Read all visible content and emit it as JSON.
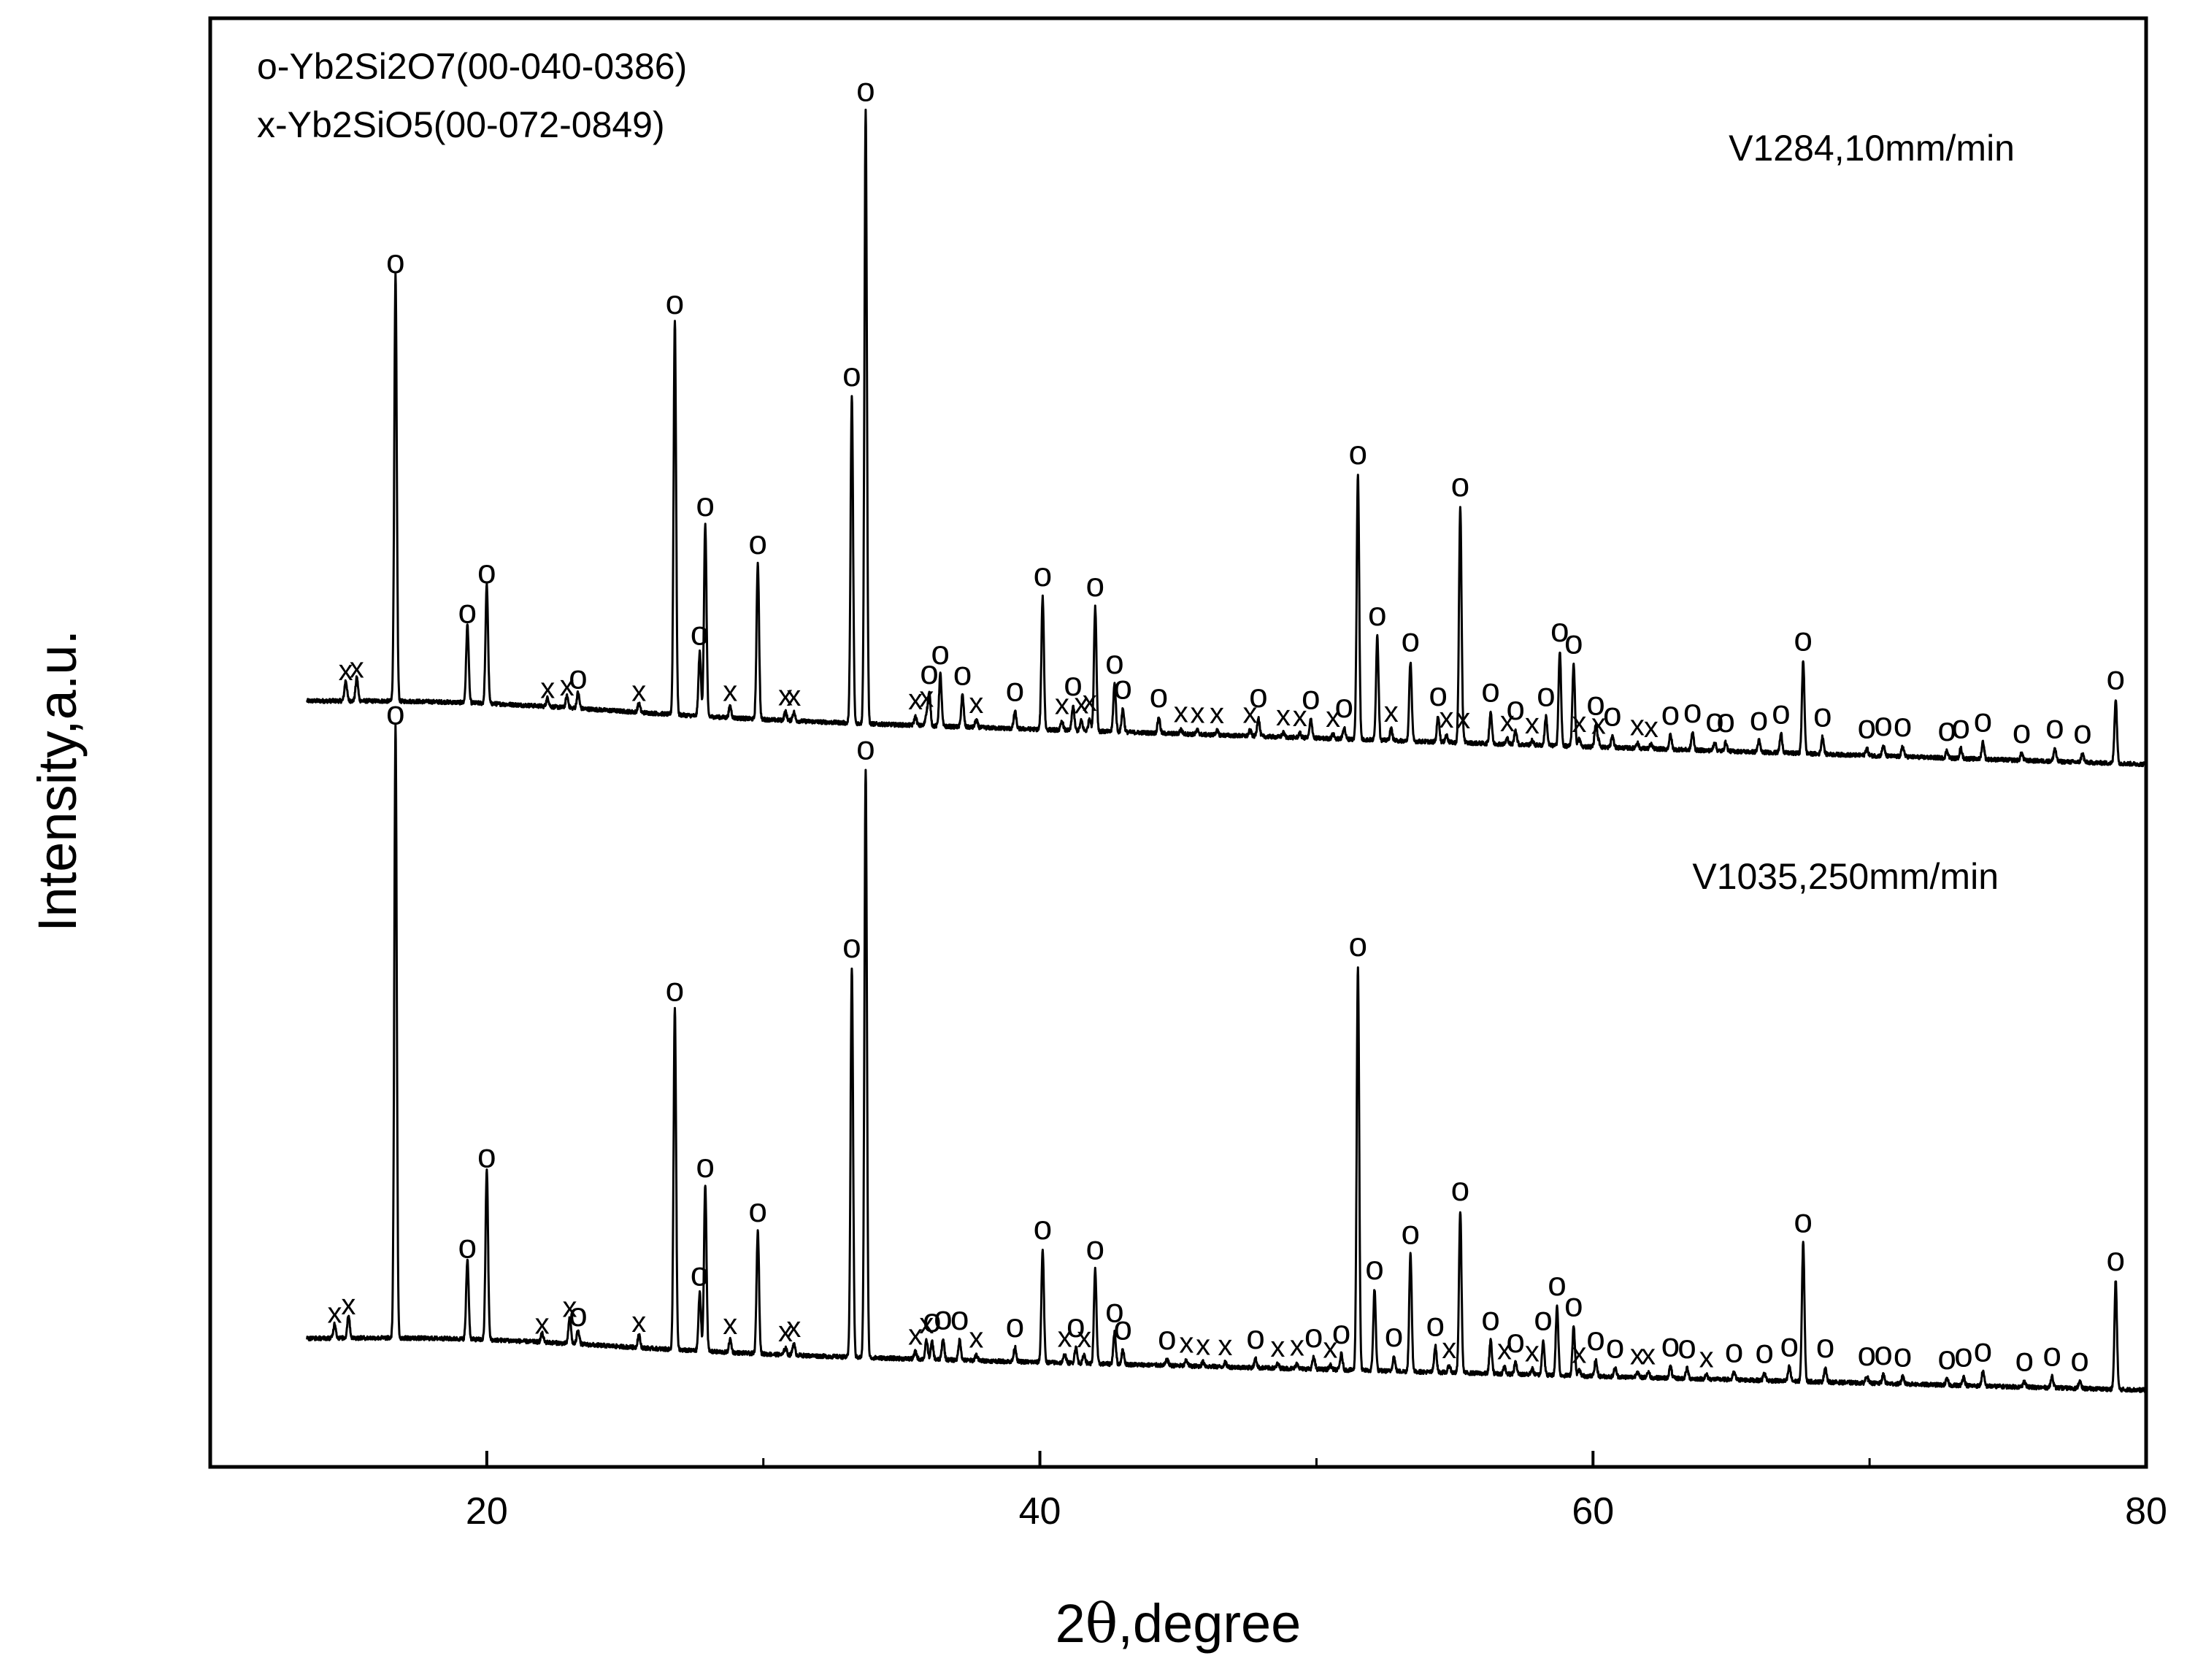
{
  "chart_data": {
    "type": "line",
    "title": "",
    "xlabel_prefix": "2",
    "xlabel_theta": "θ",
    "xlabel_suffix": ",degree",
    "ylabel": "Intensity,a.u.",
    "xlim": [
      10,
      80
    ],
    "ylim": [
      0,
      100
    ],
    "xticks": [
      20,
      40,
      60,
      80
    ],
    "y_ticks_shown": false,
    "legend_lines": [
      "o-Yb2Si2O7(00-040-0386)",
      "x-Yb2SiO5(00-072-0849)"
    ],
    "legend_position": "top-left",
    "phases": {
      "o": "Yb2Si2O7 (00-040-0386)",
      "x": "Yb2SiO5 (00-072-0849)"
    },
    "series": [
      {
        "name": "V1284,10mm/min",
        "baseline_start": 52.5,
        "baseline_end": 48.5,
        "peaks": [
          {
            "x": 14.9,
            "h": 1.4,
            "m": "x"
          },
          {
            "x": 15.3,
            "h": 1.6,
            "m": "x"
          },
          {
            "x": 16.7,
            "h": 29.4,
            "m": "o"
          },
          {
            "x": 19.3,
            "h": 5.4,
            "m": "o"
          },
          {
            "x": 20.0,
            "h": 8.2,
            "m": "o"
          },
          {
            "x": 22.2,
            "h": 0.6,
            "m": "x"
          },
          {
            "x": 22.9,
            "h": 0.8,
            "m": "x"
          },
          {
            "x": 23.3,
            "h": 1.1,
            "m": "o"
          },
          {
            "x": 25.5,
            "h": 0.6,
            "m": "x"
          },
          {
            "x": 26.8,
            "h": 27.2,
            "m": "o"
          },
          {
            "x": 27.7,
            "h": 4.4,
            "m": "o"
          },
          {
            "x": 27.9,
            "h": 13.3,
            "m": "o"
          },
          {
            "x": 28.8,
            "h": 0.8,
            "m": "x"
          },
          {
            "x": 29.8,
            "h": 10.8,
            "m": "o"
          },
          {
            "x": 30.8,
            "h": 0.6,
            "m": "x"
          },
          {
            "x": 31.1,
            "h": 0.6,
            "m": "x"
          },
          {
            "x": 33.2,
            "h": 22.6,
            "m": "o"
          },
          {
            "x": 33.7,
            "h": 42.3,
            "m": "o"
          },
          {
            "x": 35.5,
            "h": 0.6,
            "m": "x"
          },
          {
            "x": 35.9,
            "h": 0.8,
            "m": "x"
          },
          {
            "x": 36.0,
            "h": 2.2,
            "m": "o"
          },
          {
            "x": 36.4,
            "h": 3.6,
            "m": "o"
          },
          {
            "x": 37.2,
            "h": 2.2,
            "m": "o"
          },
          {
            "x": 37.7,
            "h": 0.5,
            "m": "x"
          },
          {
            "x": 39.1,
            "h": 1.2,
            "m": "o"
          },
          {
            "x": 40.1,
            "h": 9.2,
            "m": "o"
          },
          {
            "x": 40.8,
            "h": 0.6,
            "m": "x"
          },
          {
            "x": 41.2,
            "h": 1.7,
            "m": "o"
          },
          {
            "x": 41.5,
            "h": 0.7,
            "m": "x"
          },
          {
            "x": 41.8,
            "h": 0.9,
            "m": "x"
          },
          {
            "x": 42.0,
            "h": 8.6,
            "m": "o"
          },
          {
            "x": 42.7,
            "h": 3.3,
            "m": "o"
          },
          {
            "x": 43.0,
            "h": 1.6,
            "m": "o"
          },
          {
            "x": 44.3,
            "h": 1.1,
            "m": "o"
          },
          {
            "x": 45.1,
            "h": 0.3,
            "m": "x"
          },
          {
            "x": 45.7,
            "h": 0.3,
            "m": "x"
          },
          {
            "x": 46.4,
            "h": 0.3,
            "m": "x"
          },
          {
            "x": 47.6,
            "h": 0.4,
            "m": "x"
          },
          {
            "x": 47.9,
            "h": 1.3,
            "m": "o"
          },
          {
            "x": 48.8,
            "h": 0.3,
            "m": "x"
          },
          {
            "x": 49.4,
            "h": 0.3,
            "m": "x"
          },
          {
            "x": 49.8,
            "h": 1.3,
            "m": "o"
          },
          {
            "x": 50.6,
            "h": 0.3,
            "m": "x"
          },
          {
            "x": 51.0,
            "h": 0.8,
            "m": "o"
          },
          {
            "x": 51.5,
            "h": 18.3,
            "m": "o"
          },
          {
            "x": 52.2,
            "h": 7.2,
            "m": "o"
          },
          {
            "x": 52.7,
            "h": 0.8,
            "m": "x"
          },
          {
            "x": 53.4,
            "h": 5.5,
            "m": "o"
          },
          {
            "x": 54.4,
            "h": 1.8,
            "m": "o"
          },
          {
            "x": 54.7,
            "h": 0.5,
            "m": "x"
          },
          {
            "x": 55.2,
            "h": 16.3,
            "m": "o"
          },
          {
            "x": 55.3,
            "h": 0.5,
            "m": "x"
          },
          {
            "x": 56.3,
            "h": 2.2,
            "m": "o"
          },
          {
            "x": 56.9,
            "h": 0.4,
            "m": "x"
          },
          {
            "x": 57.2,
            "h": 1.0,
            "m": "o"
          },
          {
            "x": 57.8,
            "h": 0.3,
            "m": "x"
          },
          {
            "x": 58.3,
            "h": 2.0,
            "m": "o"
          },
          {
            "x": 58.8,
            "h": 6.5,
            "m": "o"
          },
          {
            "x": 59.3,
            "h": 5.7,
            "m": "o"
          },
          {
            "x": 59.5,
            "h": 0.5,
            "m": "x"
          },
          {
            "x": 60.1,
            "h": 1.5,
            "m": "o"
          },
          {
            "x": 60.2,
            "h": 0.4,
            "m": "x"
          },
          {
            "x": 60.7,
            "h": 0.8,
            "m": "o"
          },
          {
            "x": 61.6,
            "h": 0.4,
            "m": "x"
          },
          {
            "x": 62.1,
            "h": 0.3,
            "m": "x"
          },
          {
            "x": 62.8,
            "h": 1.0,
            "m": "o"
          },
          {
            "x": 63.6,
            "h": 1.2,
            "m": "o"
          },
          {
            "x": 64.4,
            "h": 0.6,
            "m": "o"
          },
          {
            "x": 64.8,
            "h": 0.6,
            "m": "o"
          },
          {
            "x": 66.0,
            "h": 0.8,
            "m": "o"
          },
          {
            "x": 66.8,
            "h": 1.3,
            "m": "o"
          },
          {
            "x": 67.6,
            "h": 6.4,
            "m": "o"
          },
          {
            "x": 68.3,
            "h": 1.2,
            "m": "o"
          },
          {
            "x": 69.9,
            "h": 0.5,
            "m": "o"
          },
          {
            "x": 70.5,
            "h": 0.7,
            "m": "o"
          },
          {
            "x": 71.2,
            "h": 0.7,
            "m": "o"
          },
          {
            "x": 72.8,
            "h": 0.5,
            "m": "o"
          },
          {
            "x": 73.3,
            "h": 0.7,
            "m": "o"
          },
          {
            "x": 74.1,
            "h": 1.2,
            "m": "o"
          },
          {
            "x": 75.5,
            "h": 0.5,
            "m": "o"
          },
          {
            "x": 76.7,
            "h": 0.9,
            "m": "o"
          },
          {
            "x": 77.7,
            "h": 0.6,
            "m": "o"
          },
          {
            "x": 78.9,
            "h": 4.4,
            "m": "o"
          }
        ]
      },
      {
        "name": "V1035,250mm/min",
        "baseline_start": 8.5,
        "baseline_end": 5.3,
        "peaks": [
          {
            "x": 14.5,
            "h": 1.0,
            "m": "x"
          },
          {
            "x": 15.0,
            "h": 1.6,
            "m": "x"
          },
          {
            "x": 16.7,
            "h": 42.2,
            "m": "o"
          },
          {
            "x": 19.3,
            "h": 5.5,
            "m": "o"
          },
          {
            "x": 20.0,
            "h": 11.8,
            "m": "o"
          },
          {
            "x": 22.0,
            "h": 0.6,
            "m": "x"
          },
          {
            "x": 23.0,
            "h": 1.8,
            "m": "x"
          },
          {
            "x": 23.3,
            "h": 1.0,
            "m": "o"
          },
          {
            "x": 25.5,
            "h": 0.9,
            "m": "x"
          },
          {
            "x": 26.8,
            "h": 23.6,
            "m": "o"
          },
          {
            "x": 27.7,
            "h": 4.0,
            "m": "o"
          },
          {
            "x": 27.9,
            "h": 11.5,
            "m": "o"
          },
          {
            "x": 28.8,
            "h": 0.9,
            "m": "x"
          },
          {
            "x": 29.8,
            "h": 8.5,
            "m": "o"
          },
          {
            "x": 30.8,
            "h": 0.5,
            "m": "x"
          },
          {
            "x": 31.1,
            "h": 0.8,
            "m": "x"
          },
          {
            "x": 33.2,
            "h": 26.9,
            "m": "o"
          },
          {
            "x": 33.7,
            "h": 40.6,
            "m": "o"
          },
          {
            "x": 35.5,
            "h": 0.5,
            "m": "x"
          },
          {
            "x": 35.9,
            "h": 1.3,
            "m": "x"
          },
          {
            "x": 36.1,
            "h": 1.2,
            "m": "o"
          },
          {
            "x": 36.5,
            "h": 1.4,
            "m": "o"
          },
          {
            "x": 37.1,
            "h": 1.4,
            "m": "o"
          },
          {
            "x": 37.7,
            "h": 0.4,
            "m": "x"
          },
          {
            "x": 39.1,
            "h": 1.0,
            "m": "o"
          },
          {
            "x": 40.1,
            "h": 7.8,
            "m": "o"
          },
          {
            "x": 40.9,
            "h": 0.6,
            "m": "x"
          },
          {
            "x": 41.3,
            "h": 1.1,
            "m": "o"
          },
          {
            "x": 41.6,
            "h": 0.6,
            "m": "x"
          },
          {
            "x": 42.0,
            "h": 6.5,
            "m": "o"
          },
          {
            "x": 42.7,
            "h": 2.2,
            "m": "o"
          },
          {
            "x": 43.0,
            "h": 1.0,
            "m": "o"
          },
          {
            "x": 44.6,
            "h": 0.4,
            "m": "o"
          },
          {
            "x": 45.3,
            "h": 0.4,
            "m": "x"
          },
          {
            "x": 45.9,
            "h": 0.3,
            "m": "x"
          },
          {
            "x": 46.7,
            "h": 0.3,
            "m": "x"
          },
          {
            "x": 47.8,
            "h": 0.6,
            "m": "o"
          },
          {
            "x": 48.6,
            "h": 0.3,
            "m": "x"
          },
          {
            "x": 49.3,
            "h": 0.4,
            "m": "x"
          },
          {
            "x": 49.9,
            "h": 0.8,
            "m": "o"
          },
          {
            "x": 50.5,
            "h": 0.3,
            "m": "x"
          },
          {
            "x": 50.9,
            "h": 1.1,
            "m": "o"
          },
          {
            "x": 51.5,
            "h": 27.9,
            "m": "o"
          },
          {
            "x": 52.1,
            "h": 5.6,
            "m": "o"
          },
          {
            "x": 52.8,
            "h": 1.0,
            "m": "o"
          },
          {
            "x": 53.4,
            "h": 8.1,
            "m": "o"
          },
          {
            "x": 54.3,
            "h": 1.8,
            "m": "o"
          },
          {
            "x": 54.8,
            "h": 0.5,
            "m": "x"
          },
          {
            "x": 55.2,
            "h": 11.2,
            "m": "o"
          },
          {
            "x": 56.3,
            "h": 2.3,
            "m": "o"
          },
          {
            "x": 56.8,
            "h": 0.5,
            "m": "x"
          },
          {
            "x": 57.2,
            "h": 0.8,
            "m": "o"
          },
          {
            "x": 57.8,
            "h": 0.4,
            "m": "x"
          },
          {
            "x": 58.2,
            "h": 2.4,
            "m": "o"
          },
          {
            "x": 58.7,
            "h": 4.8,
            "m": "o"
          },
          {
            "x": 59.3,
            "h": 3.4,
            "m": "o"
          },
          {
            "x": 59.5,
            "h": 0.4,
            "m": "x"
          },
          {
            "x": 60.1,
            "h": 1.1,
            "m": "o"
          },
          {
            "x": 60.8,
            "h": 0.6,
            "m": "o"
          },
          {
            "x": 61.6,
            "h": 0.4,
            "m": "x"
          },
          {
            "x": 62.0,
            "h": 0.4,
            "m": "x"
          },
          {
            "x": 62.8,
            "h": 0.8,
            "m": "o"
          },
          {
            "x": 63.4,
            "h": 0.7,
            "m": "o"
          },
          {
            "x": 64.1,
            "h": 0.3,
            "m": "x"
          },
          {
            "x": 65.1,
            "h": 0.5,
            "m": "o"
          },
          {
            "x": 66.2,
            "h": 0.5,
            "m": "o"
          },
          {
            "x": 67.1,
            "h": 1.0,
            "m": "o"
          },
          {
            "x": 67.6,
            "h": 9.6,
            "m": "o"
          },
          {
            "x": 68.4,
            "h": 1.0,
            "m": "o"
          },
          {
            "x": 69.9,
            "h": 0.5,
            "m": "o"
          },
          {
            "x": 70.5,
            "h": 0.6,
            "m": "o"
          },
          {
            "x": 71.2,
            "h": 0.5,
            "m": "o"
          },
          {
            "x": 72.8,
            "h": 0.4,
            "m": "o"
          },
          {
            "x": 73.4,
            "h": 0.6,
            "m": "o"
          },
          {
            "x": 74.1,
            "h": 1.0,
            "m": "o"
          },
          {
            "x": 75.6,
            "h": 0.4,
            "m": "o"
          },
          {
            "x": 76.6,
            "h": 0.8,
            "m": "o"
          },
          {
            "x": 77.6,
            "h": 0.5,
            "m": "o"
          },
          {
            "x": 78.9,
            "h": 7.5,
            "m": "o"
          }
        ]
      }
    ]
  }
}
